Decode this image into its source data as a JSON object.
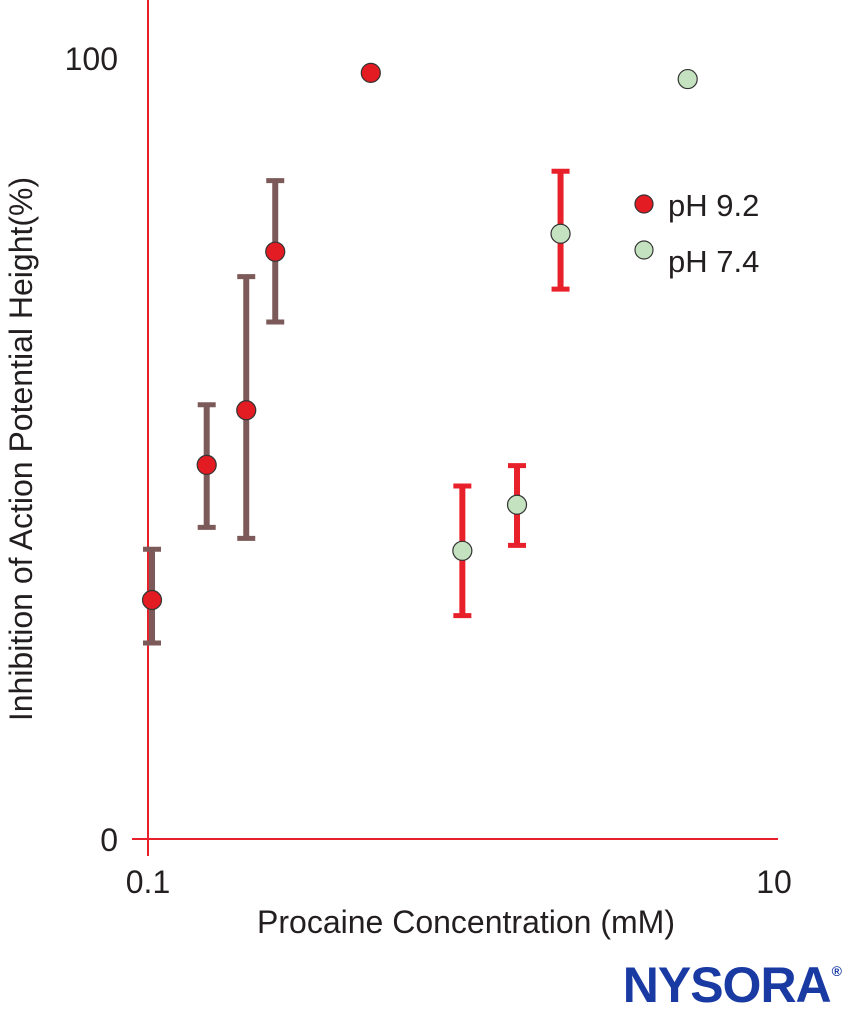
{
  "chart_data": {
    "type": "scatter",
    "title": "",
    "xlabel": "Procaine Concentration (mM)",
    "ylabel": "Inhibition of Action Potential Height(%)",
    "xscale": "log",
    "xlim": [
      0.1,
      10
    ],
    "ylim": [
      0,
      100
    ],
    "xticks": [
      {
        "value": 0.1,
        "label": "0.1"
      },
      {
        "value": 10,
        "label": "10"
      }
    ],
    "yticks": [
      {
        "value": 0,
        "label": "0"
      },
      {
        "value": 100,
        "label": "100"
      }
    ],
    "grid": false,
    "legend_position": "right-middle-top",
    "colors": {
      "axis": "#e8202a",
      "ph92_marker": "#e31b23",
      "ph92_errorbar": "#7d5a5a",
      "ph74_marker": "#c5e2c0",
      "ph74_errorbar": "#e8202a",
      "marker_edge": "#333333"
    },
    "series": [
      {
        "name": "pH 9.2",
        "points": [
          {
            "x": 0.103,
            "y": 30.6,
            "err_low": 25.1,
            "err_high": 37.1
          },
          {
            "x": 0.154,
            "y": 47.9,
            "err_low": 39.9,
            "err_high": 55.6
          },
          {
            "x": 0.206,
            "y": 54.9,
            "err_low": 38.5,
            "err_high": 72.0
          },
          {
            "x": 0.255,
            "y": 75.2,
            "err_low": 66.2,
            "err_high": 84.3
          },
          {
            "x": 0.515,
            "y": 98.1
          }
        ]
      },
      {
        "name": "pH 7.4",
        "points": [
          {
            "x": 1.01,
            "y": 36.9,
            "err_low": 28.6,
            "err_high": 45.2
          },
          {
            "x": 1.51,
            "y": 42.8,
            "err_low": 37.6,
            "err_high": 47.8
          },
          {
            "x": 2.08,
            "y": 77.5,
            "err_low": 70.4,
            "err_high": 85.5
          },
          {
            "x": 5.3,
            "y": 97.3
          }
        ]
      }
    ]
  },
  "brand": {
    "name": "NYSORA",
    "mark": "®"
  }
}
